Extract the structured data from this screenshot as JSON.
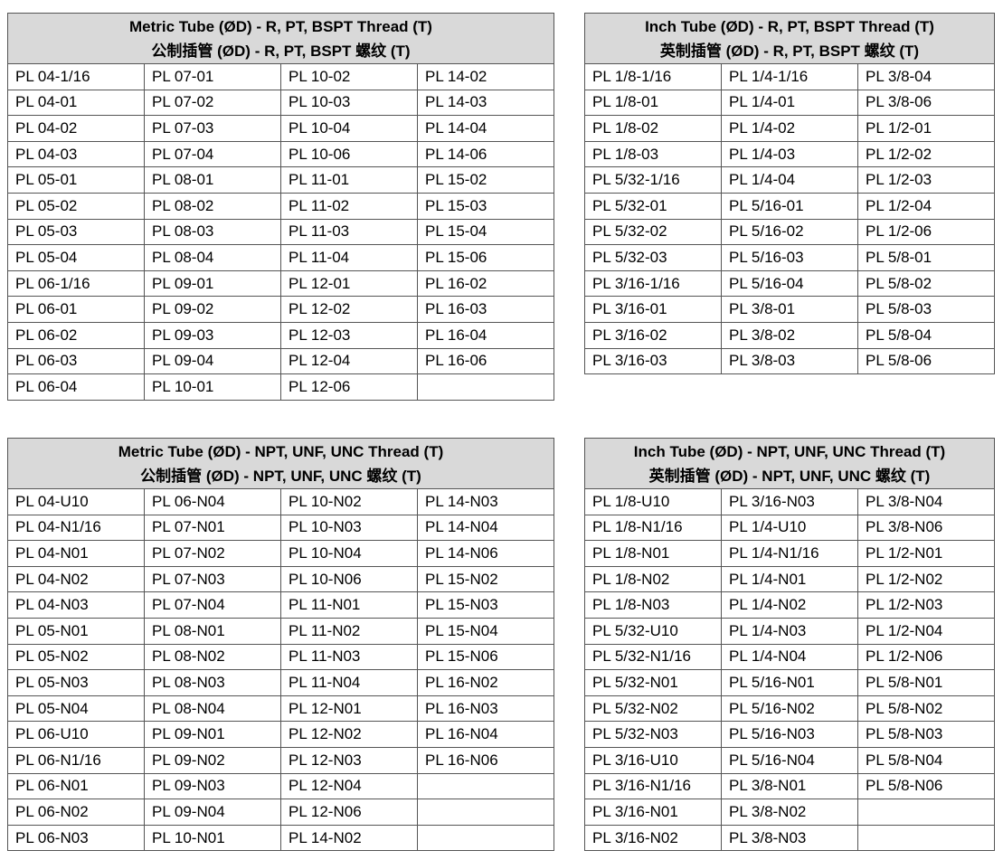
{
  "tables": [
    {
      "title_en": "Metric Tube (ØD) - R, PT, BSPT Thread (T)",
      "title_cn": "公制插管 (ØD) - R, PT, BSPT 螺纹 (T)",
      "columns": 4,
      "rows": [
        [
          "PL 04-1/16",
          "PL 07-01",
          "PL 10-02",
          "PL 14-02"
        ],
        [
          "PL 04-01",
          "PL 07-02",
          "PL 10-03",
          "PL 14-03"
        ],
        [
          "PL 04-02",
          "PL 07-03",
          "PL 10-04",
          "PL 14-04"
        ],
        [
          "PL 04-03",
          "PL 07-04",
          "PL 10-06",
          "PL 14-06"
        ],
        [
          "PL 05-01",
          "PL 08-01",
          "PL 11-01",
          "PL 15-02"
        ],
        [
          "PL 05-02",
          "PL 08-02",
          "PL 11-02",
          "PL 15-03"
        ],
        [
          "PL 05-03",
          "PL 08-03",
          "PL 11-03",
          "PL 15-04"
        ],
        [
          "PL 05-04",
          "PL 08-04",
          "PL 11-04",
          "PL 15-06"
        ],
        [
          "PL 06-1/16",
          "PL 09-01",
          "PL 12-01",
          "PL 16-02"
        ],
        [
          "PL 06-01",
          "PL 09-02",
          "PL 12-02",
          "PL 16-03"
        ],
        [
          "PL 06-02",
          "PL 09-03",
          "PL 12-03",
          "PL 16-04"
        ],
        [
          "PL 06-03",
          "PL 09-04",
          "PL 12-04",
          "PL 16-06"
        ],
        [
          "PL 06-04",
          "PL 10-01",
          "PL 12-06",
          ""
        ]
      ]
    },
    {
      "title_en": "Inch Tube (ØD) - R, PT, BSPT Thread (T)",
      "title_cn": "英制插管 (ØD) - R, PT, BSPT 螺纹 (T)",
      "columns": 3,
      "rows": [
        [
          "PL 1/8-1/16",
          "PL 1/4-1/16",
          "PL 3/8-04"
        ],
        [
          "PL 1/8-01",
          "PL 1/4-01",
          "PL 3/8-06"
        ],
        [
          "PL 1/8-02",
          "PL 1/4-02",
          "PL 1/2-01"
        ],
        [
          "PL 1/8-03",
          "PL 1/4-03",
          "PL 1/2-02"
        ],
        [
          "PL 5/32-1/16",
          "PL 1/4-04",
          "PL 1/2-03"
        ],
        [
          "PL 5/32-01",
          "PL 5/16-01",
          "PL 1/2-04"
        ],
        [
          "PL 5/32-02",
          "PL 5/16-02",
          "PL 1/2-06"
        ],
        [
          "PL 5/32-03",
          "PL 5/16-03",
          "PL 5/8-01"
        ],
        [
          "PL 3/16-1/16",
          "PL 5/16-04",
          "PL 5/8-02"
        ],
        [
          "PL 3/16-01",
          "PL 3/8-01",
          "PL 5/8-03"
        ],
        [
          "PL 3/16-02",
          "PL 3/8-02",
          "PL 5/8-04"
        ],
        [
          "PL 3/16-03",
          "PL 3/8-03",
          "PL 5/8-06"
        ]
      ]
    },
    {
      "title_en": "Metric Tube (ØD) - NPT, UNF, UNC Thread (T)",
      "title_cn": "公制插管 (ØD) - NPT, UNF, UNC 螺纹 (T)",
      "columns": 4,
      "rows": [
        [
          "PL 04-U10",
          "PL 06-N04",
          "PL 10-N02",
          "PL 14-N03"
        ],
        [
          "PL 04-N1/16",
          "PL 07-N01",
          "PL 10-N03",
          "PL 14-N04"
        ],
        [
          "PL 04-N01",
          "PL 07-N02",
          "PL 10-N04",
          "PL 14-N06"
        ],
        [
          "PL 04-N02",
          "PL 07-N03",
          "PL 10-N06",
          "PL 15-N02"
        ],
        [
          "PL 04-N03",
          "PL 07-N04",
          "PL 11-N01",
          "PL 15-N03"
        ],
        [
          "PL 05-N01",
          "PL 08-N01",
          "PL 11-N02",
          "PL 15-N04"
        ],
        [
          "PL 05-N02",
          "PL 08-N02",
          "PL 11-N03",
          "PL 15-N06"
        ],
        [
          "PL 05-N03",
          "PL 08-N03",
          "PL 11-N04",
          "PL 16-N02"
        ],
        [
          "PL 05-N04",
          "PL 08-N04",
          "PL 12-N01",
          "PL 16-N03"
        ],
        [
          "PL 06-U10",
          "PL 09-N01",
          "PL 12-N02",
          "PL 16-N04"
        ],
        [
          "PL 06-N1/16",
          "PL 09-N02",
          "PL 12-N03",
          "PL 16-N06"
        ],
        [
          "PL 06-N01",
          "PL 09-N03",
          "PL 12-N04",
          ""
        ],
        [
          "PL 06-N02",
          "PL 09-N04",
          "PL 12-N06",
          ""
        ],
        [
          "PL 06-N03",
          "PL 10-N01",
          "PL 14-N02",
          ""
        ]
      ]
    },
    {
      "title_en": "Inch Tube (ØD) - NPT, UNF, UNC Thread (T)",
      "title_cn": "英制插管 (ØD) - NPT, UNF, UNC 螺纹 (T)",
      "columns": 3,
      "rows": [
        [
          "PL 1/8-U10",
          "PL 3/16-N03",
          "PL 3/8-N04"
        ],
        [
          "PL 1/8-N1/16",
          "PL 1/4-U10",
          "PL 3/8-N06"
        ],
        [
          "PL 1/8-N01",
          "PL 1/4-N1/16",
          "PL 1/2-N01"
        ],
        [
          "PL 1/8-N02",
          "PL 1/4-N01",
          "PL 1/2-N02"
        ],
        [
          "PL 1/8-N03",
          "PL 1/4-N02",
          "PL 1/2-N03"
        ],
        [
          "PL 5/32-U10",
          "PL 1/4-N03",
          "PL 1/2-N04"
        ],
        [
          "PL 5/32-N1/16",
          "PL 1/4-N04",
          "PL 1/2-N06"
        ],
        [
          "PL 5/32-N01",
          "PL 5/16-N01",
          "PL 5/8-N01"
        ],
        [
          "PL 5/32-N02",
          "PL 5/16-N02",
          "PL 5/8-N02"
        ],
        [
          "PL 5/32-N03",
          "PL 5/16-N03",
          "PL 5/8-N03"
        ],
        [
          "PL 3/16-U10",
          "PL 5/16-N04",
          "PL 5/8-N04"
        ],
        [
          "PL 3/16-N1/16",
          "PL 3/8-N01",
          "PL 5/8-N06"
        ],
        [
          "PL 3/16-N01",
          "PL 3/8-N02",
          ""
        ],
        [
          "PL 3/16-N02",
          "PL 3/8-N03",
          ""
        ]
      ]
    }
  ]
}
